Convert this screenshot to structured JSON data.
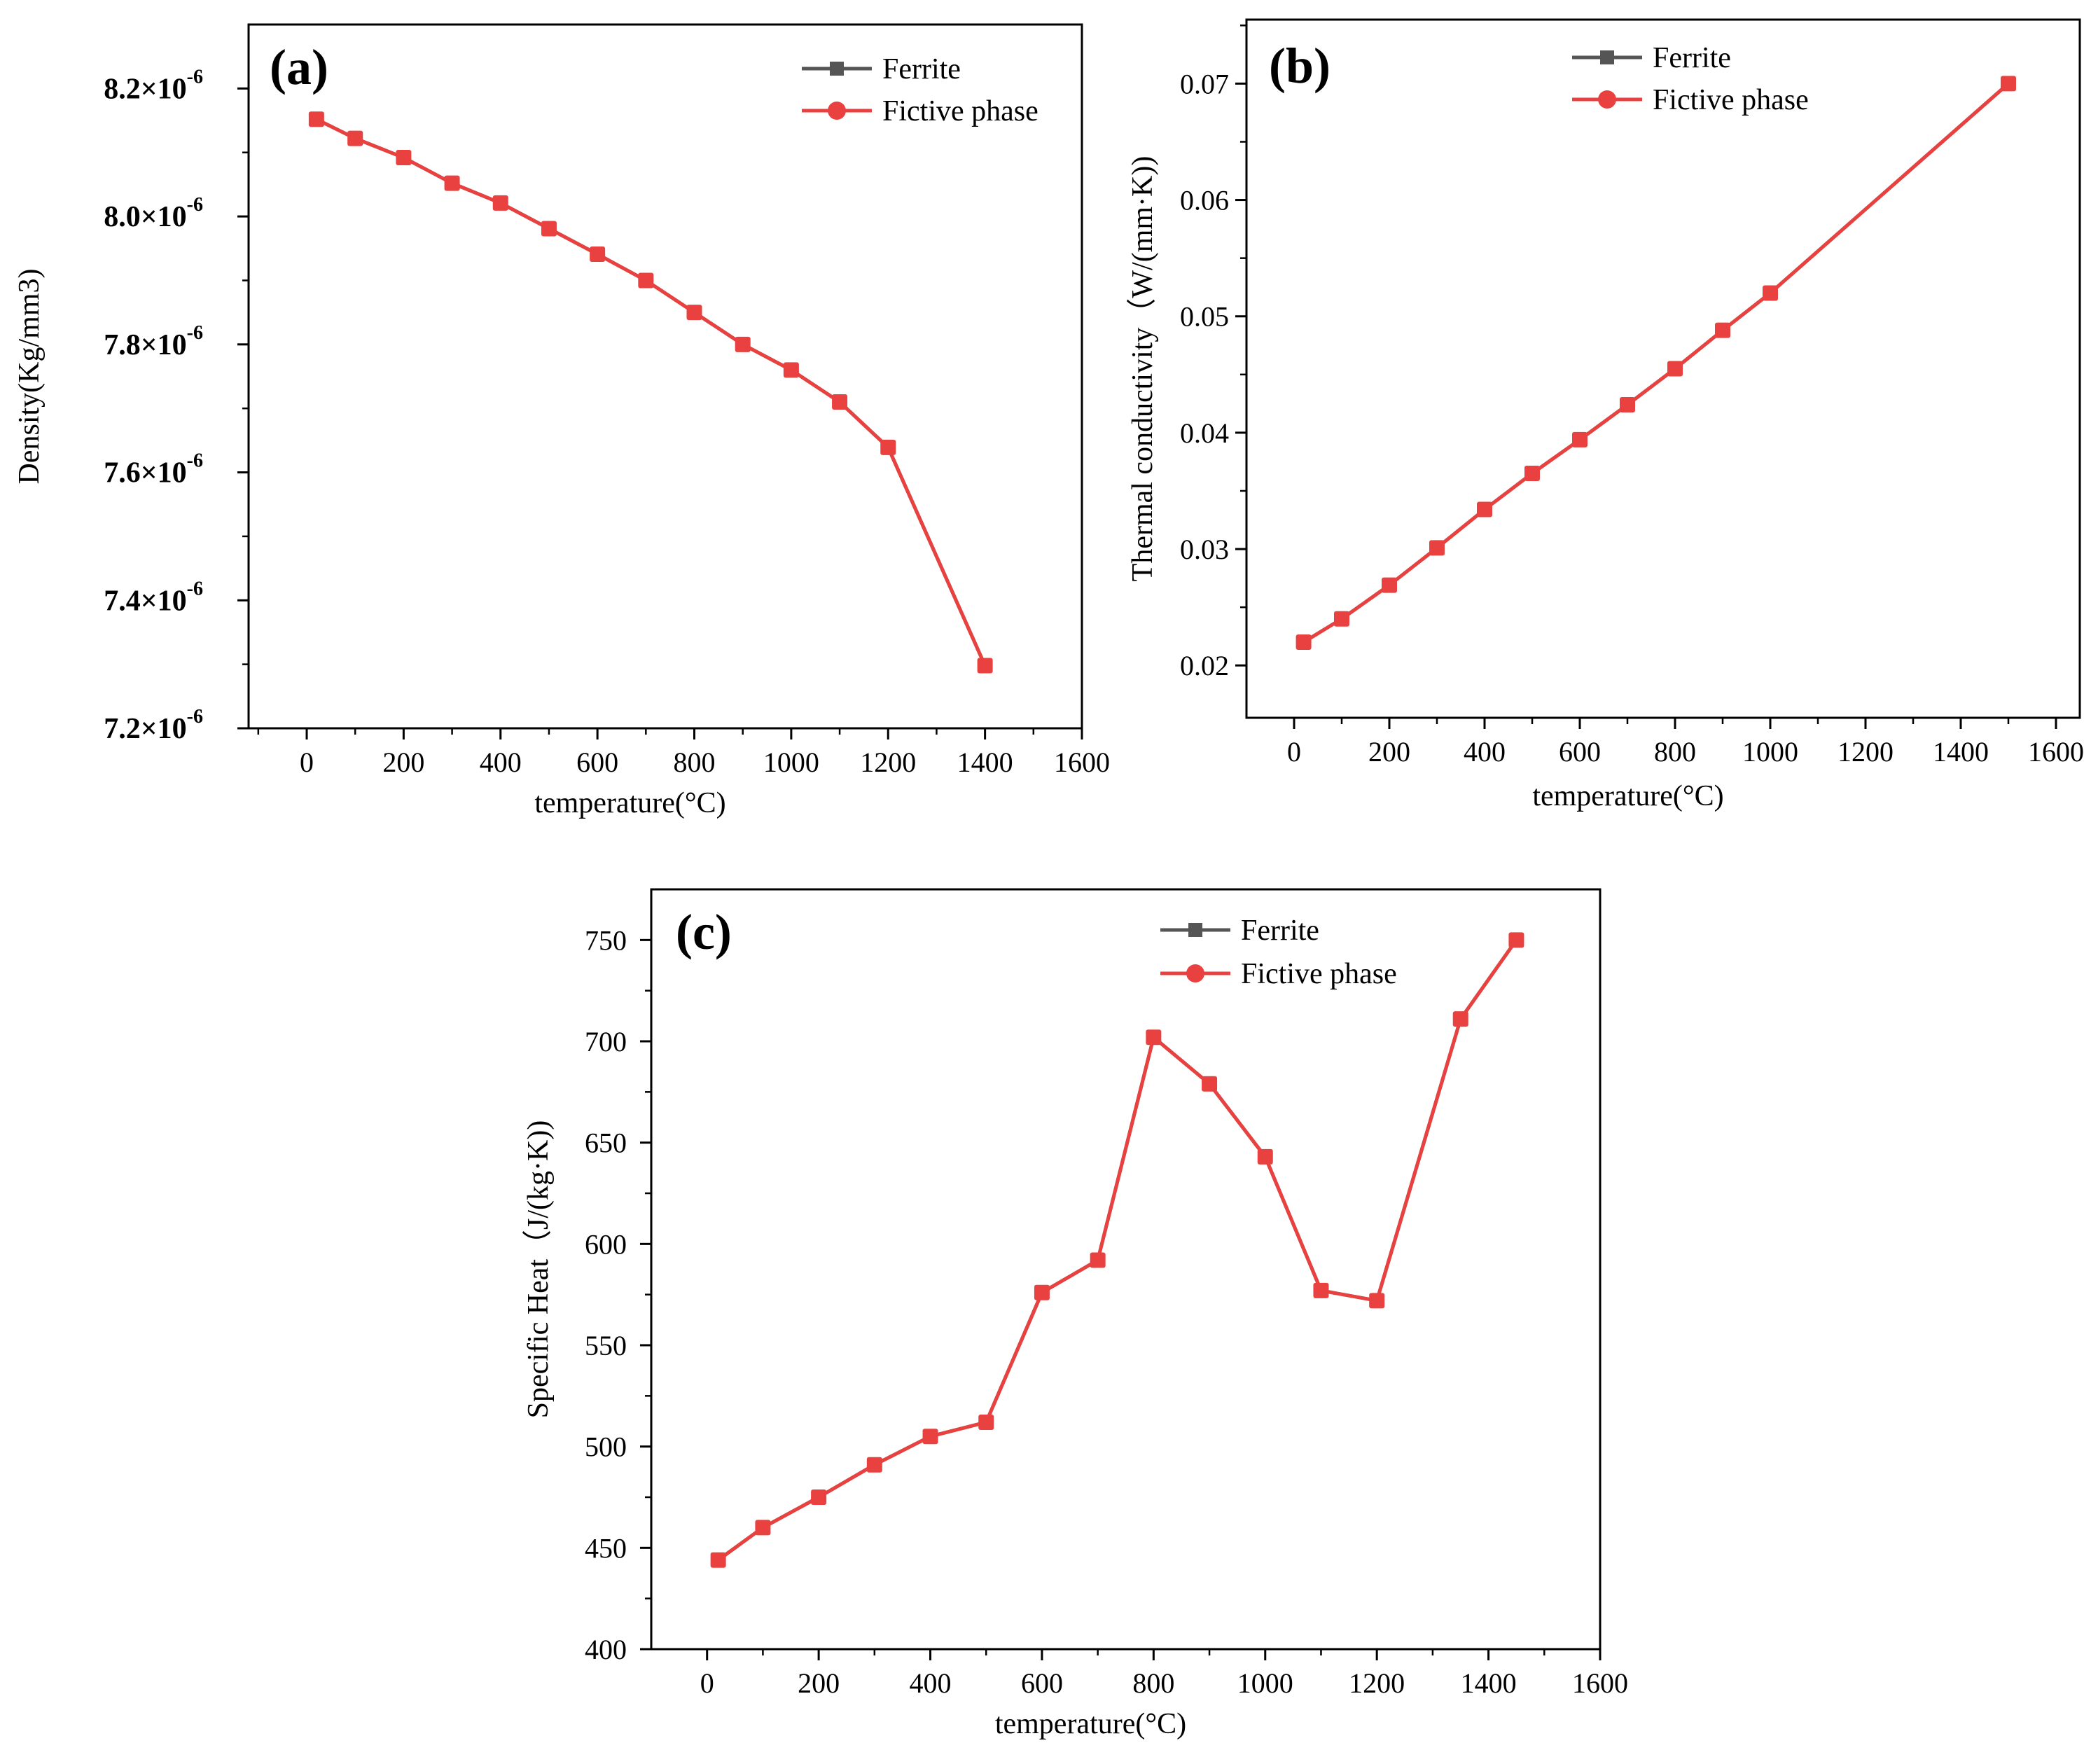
{
  "chart_data": [
    {
      "type": "line",
      "panel_label": "(a)",
      "xlabel": "temperature(°C)",
      "ylabel": "Density(Kg/mm3)",
      "xlim": [
        -120,
        1600
      ],
      "ylim": [
        7.2e-06,
        8.3e-06
      ],
      "xticks": [
        0,
        200,
        400,
        600,
        800,
        1000,
        1200,
        1400,
        1600
      ],
      "yticks": [
        7.2e-06,
        7.4e-06,
        7.6e-06,
        7.8e-06,
        8e-06,
        8.2e-06
      ],
      "ytick_labels": [
        {
          "mantissa": "7.2×",
          "base": "10",
          "exp": "-6"
        },
        {
          "mantissa": "7.4×",
          "base": "10",
          "exp": "-6"
        },
        {
          "mantissa": "7.6×",
          "base": "10",
          "exp": "-6"
        },
        {
          "mantissa": "7.8×",
          "base": "10",
          "exp": "-6"
        },
        {
          "mantissa": "8.0×",
          "base": "10",
          "exp": "-6"
        },
        {
          "mantissa": "8.2×",
          "base": "10",
          "exp": "-6"
        }
      ],
      "legend_position": "top-right",
      "series": [
        {
          "name": "Ferrite",
          "color": "#555555",
          "marker": "square",
          "x": [
            20,
            100,
            200,
            300,
            400,
            500,
            600,
            700,
            800,
            900,
            1000,
            1100,
            1200,
            1400
          ],
          "values": [
            8.152e-06,
            8.122e-06,
            8.092e-06,
            8.052e-06,
            8.021e-06,
            7.981e-06,
            7.941e-06,
            7.9e-06,
            7.85e-06,
            7.8e-06,
            7.76e-06,
            7.71e-06,
            7.639e-06,
            7.298e-06
          ]
        },
        {
          "name": "Fictive phase",
          "color": "#e8413f",
          "marker": "circle",
          "x": [
            20,
            100,
            200,
            300,
            400,
            500,
            600,
            700,
            800,
            900,
            1000,
            1100,
            1200,
            1400
          ],
          "values": [
            8.152e-06,
            8.122e-06,
            8.092e-06,
            8.052e-06,
            8.021e-06,
            7.981e-06,
            7.941e-06,
            7.9e-06,
            7.85e-06,
            7.8e-06,
            7.76e-06,
            7.71e-06,
            7.639e-06,
            7.298e-06
          ]
        }
      ]
    },
    {
      "type": "line",
      "panel_label": "(b)",
      "xlabel": "temperature(°C)",
      "ylabel": "Thermal conductivity（W/(mm·K))",
      "xlim": [
        -100,
        1650
      ],
      "ylim": [
        0.0155,
        0.0755
      ],
      "xticks": [
        0,
        200,
        400,
        600,
        800,
        1000,
        1200,
        1400,
        1600
      ],
      "yticks": [
        0.02,
        0.03,
        0.04,
        0.05,
        0.06,
        0.07
      ],
      "ytick_labels": [
        "0.02",
        "0.03",
        "0.04",
        "0.05",
        "0.06",
        "0.07"
      ],
      "legend_position": "top-right",
      "series": [
        {
          "name": "Ferrite",
          "color": "#555555",
          "marker": "square",
          "x": [
            20,
            100,
            200,
            300,
            400,
            500,
            600,
            700,
            800,
            900,
            1000,
            1500
          ],
          "values": [
            0.022,
            0.024,
            0.0269,
            0.0301,
            0.0334,
            0.0365,
            0.0394,
            0.0424,
            0.0455,
            0.0488,
            0.052,
            0.07
          ]
        },
        {
          "name": "Fictive phase",
          "color": "#e8413f",
          "marker": "circle",
          "x": [
            20,
            100,
            200,
            300,
            400,
            500,
            600,
            700,
            800,
            900,
            1000,
            1500
          ],
          "values": [
            0.022,
            0.024,
            0.0269,
            0.0301,
            0.0334,
            0.0365,
            0.0394,
            0.0424,
            0.0455,
            0.0488,
            0.052,
            0.07
          ]
        }
      ]
    },
    {
      "type": "line",
      "panel_label": "(c)",
      "xlabel": "temperature(°C)",
      "ylabel": "Specific Heat（J/(kg·K))",
      "xlim": [
        -100,
        1600
      ],
      "ylim": [
        400,
        775
      ],
      "xticks": [
        0,
        200,
        400,
        600,
        800,
        1000,
        1200,
        1400,
        1600
      ],
      "yticks": [
        400,
        450,
        500,
        550,
        600,
        650,
        700,
        750
      ],
      "ytick_labels": [
        "400",
        "450",
        "500",
        "550",
        "600",
        "650",
        "700",
        "750"
      ],
      "legend_position": "top-right",
      "series": [
        {
          "name": "Ferrite",
          "color": "#555555",
          "marker": "square",
          "x": [
            20,
            100,
            200,
            300,
            400,
            500,
            600,
            700,
            800,
            900,
            1000,
            1100,
            1200,
            1350,
            1450
          ],
          "values": [
            444,
            460,
            475,
            491,
            505,
            512,
            576,
            592,
            702,
            679,
            643,
            577,
            572,
            711,
            750
          ]
        },
        {
          "name": "Fictive phase",
          "color": "#e8413f",
          "marker": "circle",
          "x": [
            20,
            100,
            200,
            300,
            400,
            500,
            600,
            700,
            800,
            900,
            1000,
            1100,
            1200,
            1350,
            1450
          ],
          "values": [
            444,
            460,
            475,
            491,
            505,
            512,
            576,
            592,
            702,
            679,
            643,
            577,
            572,
            711,
            750
          ]
        }
      ]
    }
  ]
}
